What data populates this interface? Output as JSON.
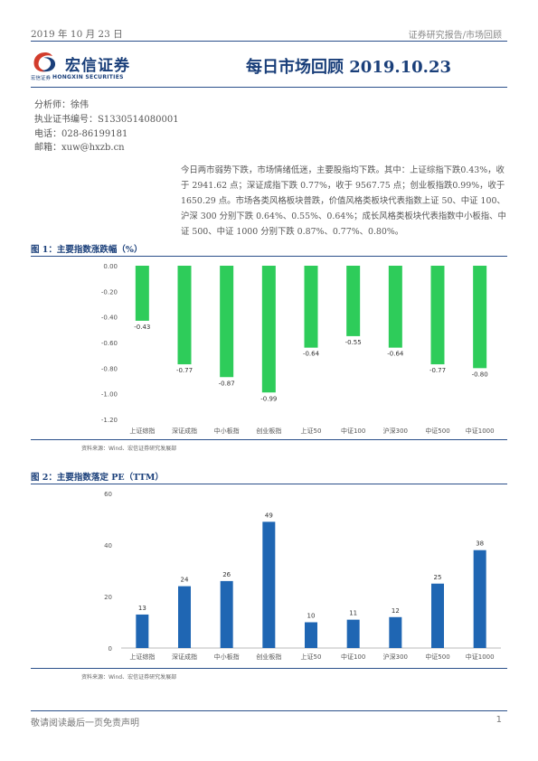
{
  "header": {
    "date": "2019 年 10 月 23 日",
    "category": "证券研究报告/市场回顾",
    "title": "每日市场回顾 2019.10.23"
  },
  "logo": {
    "name_cn": "宏信证券",
    "sub_cn": "宏信证券",
    "sub_en": "HONGXIN SECURITIES",
    "brand_color": "#1a3f7a",
    "accent_color": "#d23c2c"
  },
  "analyst": {
    "name_line": "分析师：徐伟",
    "cert_line": "执业证书编号：S1330514080001",
    "phone_line": "电话：028-86199181",
    "email_line": "邮箱：xuw@hxzb.cn"
  },
  "summary": "今日两市弱势下跌，市场情绪低迷，主要股指均下跌。其中：上证综指下跌0.43%，收于 2941.62 点；深证成指下跌 0.77%，收于 9567.75 点；创业板指跌0.99%，收于 1650.29 点。市场各类风格板块普跌，价值风格类板块代表指数上证 50、中证 100、沪深 300 分别下跌 0.64%、0.55%、0.64%；成长风格类板块代表指数中小板指、中证 500、中证 1000 分别下跌 0.87%、0.77%、0.80%。",
  "figure1": {
    "title": "图 1：主要指数涨跌幅（%）",
    "source": "资料来源：Wind、宏信证券研究发展部"
  },
  "figure2": {
    "title": "图 2：主要指数落定 PE（TTM）",
    "source": "资料来源：Wind、宏信证券研究发展部"
  },
  "chart_data": [
    {
      "type": "bar",
      "categories": [
        "上证综指",
        "深证成指",
        "中小板指",
        "创业板指",
        "上证50",
        "中证100",
        "沪深300",
        "中证500",
        "中证1000"
      ],
      "values": [
        -0.43,
        -0.77,
        -0.87,
        -0.99,
        -0.64,
        -0.55,
        -0.64,
        -0.77,
        -0.8
      ],
      "value_labels": [
        "-0.43",
        "-0.77",
        "-0.87",
        "-0.99",
        "-0.64",
        "-0.55",
        "-0.64",
        "-0.77",
        "-0.80"
      ],
      "ylim": [
        -1.2,
        0
      ],
      "yticks": [
        "0.00",
        "-0.20",
        "-0.40",
        "-0.60",
        "-0.80",
        "-1.00",
        "-1.20"
      ],
      "ytick_values": [
        0,
        -0.2,
        -0.4,
        -0.6,
        -0.8,
        -1.0,
        -1.2
      ],
      "bar_color": "#2ecc5a",
      "grid": false
    },
    {
      "type": "bar",
      "categories": [
        "上证综指",
        "深证成指",
        "中小板指",
        "创业板指",
        "上证50",
        "中证100",
        "沪深300",
        "中证500",
        "中证1000"
      ],
      "values": [
        13,
        24,
        26,
        49,
        10,
        11,
        12,
        25,
        38
      ],
      "value_labels": [
        "13",
        "24",
        "26",
        "49",
        "10",
        "11",
        "12",
        "25",
        "38"
      ],
      "ylim": [
        0,
        60
      ],
      "yticks": [
        "0",
        "20",
        "40",
        "60"
      ],
      "ytick_values": [
        0,
        20,
        40,
        60
      ],
      "bar_color": "#1f66b3",
      "grid": false
    }
  ],
  "footer": {
    "disclaimer": "敬请阅读最后一页免责声明",
    "page": "1"
  }
}
